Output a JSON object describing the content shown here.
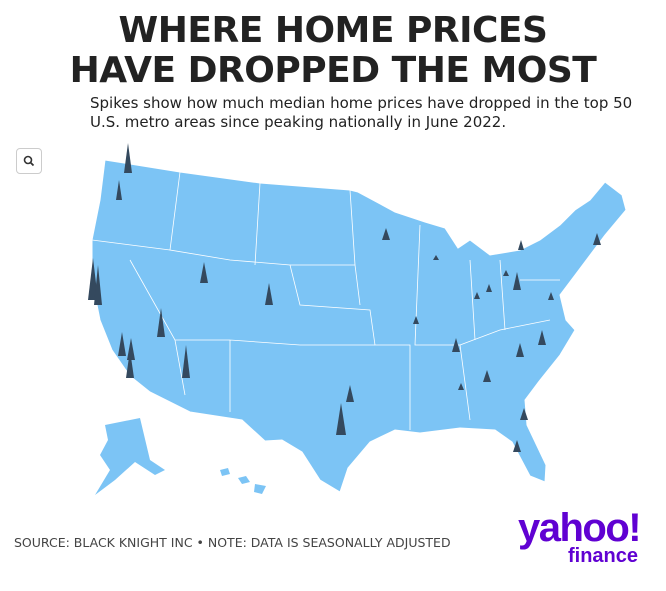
{
  "header": {
    "title_lines": [
      "WHERE HOME PRICES",
      "HAVE DROPPED THE MOST"
    ],
    "subtitle": "Spikes show how much median home prices have dropped in the top 50 U.S. metro areas since peaking nationally in June 2022."
  },
  "footer": {
    "source": "SOURCE: BLACK KNIGHT INC • NOTE: DATA IS SEASONALLY ADJUSTED",
    "logo_top": "yahoo!",
    "logo_bottom": "finance"
  }
}
